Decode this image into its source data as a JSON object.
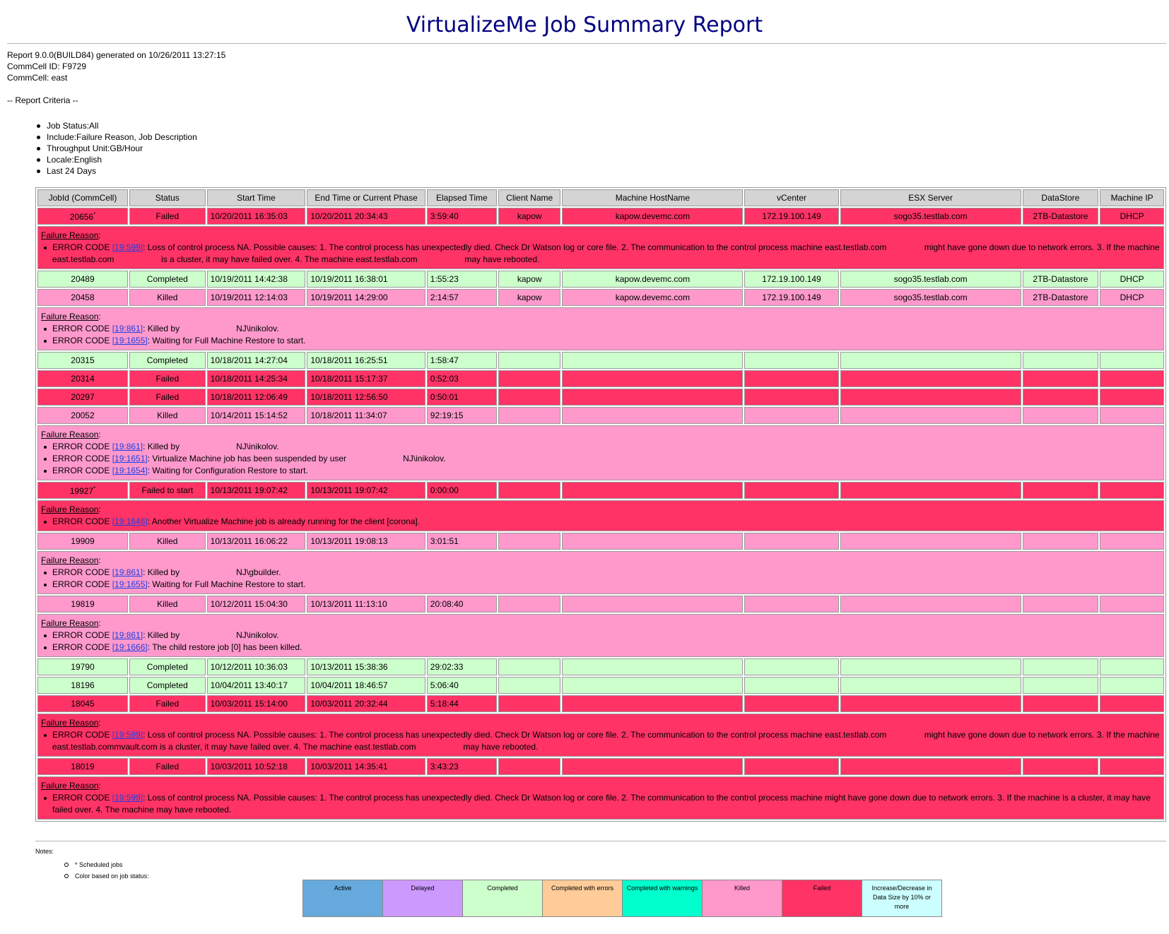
{
  "title": "VirtualizeMe Job Summary Report",
  "header": {
    "report_line": "Report 9.0.0(BUILD84) generated on 10/26/2011 13:27:15",
    "commcell_id": "CommCell ID: F9729",
    "commcell": "CommCell: east",
    "criteria_label": "-- Report Criteria --"
  },
  "criteria": [
    "Job Status:All",
    "Include:Failure Reason, Job Description",
    "Throughput Unit:GB/Hour",
    "Locale:English",
    "Last 24 Days"
  ],
  "columns": [
    "JobId (CommCell)",
    "Status",
    "Start Time",
    "End Time or Current Phase",
    "Elapsed Time",
    "Client Name",
    "Machine HostName",
    "vCenter",
    "ESX Server",
    "DataStore",
    "Machine IP"
  ],
  "colors": {
    "failed": "#ff3366",
    "completed": "#ccffcc",
    "killed": "#ff99cc",
    "header": "#d4d4d4",
    "active": "#66aadd",
    "delayed": "#cc99ff",
    "completed_with_errors": "#ffcc99",
    "completed_with_warnings": "#00ffcc",
    "increase_decrease": "#ccffff"
  },
  "failure_reason_label": "Failure Reason",
  "error_code_label": "ERROR CODE",
  "jobs": [
    {
      "jobid": "20656",
      "scheduled": true,
      "status": "Failed",
      "status_key": "failed",
      "start": "10/20/2011 16:35:03",
      "end": "10/20/2011 20:34:43",
      "elapsed": "3:59:40",
      "client": "kapow",
      "host": "kapow.devemc.com",
      "vcenter": "172.19.100.149",
      "esx": "sogo35.testlab.com",
      "datastore": "2TB-Datastore",
      "ip": "DHCP",
      "errors": [
        {
          "code": "19:599",
          "text": ": Loss of control process NA. Possible causes: 1. The control process has unexpectedly died. Check Dr Watson log or core file. 2. The communication to the control process machine east.testlab.com                might have gone down due to network errors. 3. If the machine east.testlab.com                    is a cluster, it may have failed over. 4. The machine east.testlab.com                    may have rebooted."
        }
      ]
    },
    {
      "jobid": "20489",
      "scheduled": false,
      "status": "Completed",
      "status_key": "completed",
      "start": "10/19/2011 14:42:38",
      "end": "10/19/2011 16:38:01",
      "elapsed": "1:55:23",
      "client": "kapow",
      "host": "kapow.devemc.com",
      "vcenter": "172.19.100.149",
      "esx": "sogo35.testlab.com",
      "datastore": "2TB-Datastore",
      "ip": "DHCP",
      "errors": []
    },
    {
      "jobid": "20458",
      "scheduled": false,
      "status": "Killed",
      "status_key": "killed",
      "start": "10/19/2011 12:14:03",
      "end": "10/19/2011 14:29:00",
      "elapsed": "2:14:57",
      "client": "kapow",
      "host": "kapow.devemc.com",
      "vcenter": "172.19.100.149",
      "esx": "sogo35.testlab.com",
      "datastore": "2TB-Datastore",
      "ip": "DHCP",
      "errors": [
        {
          "code": "19:861",
          "text": ": Killed by                        NJ\\inikolov."
        },
        {
          "code": "19:1655",
          "text": ": Waiting for Full Machine Restore to start."
        }
      ]
    },
    {
      "jobid": "20315",
      "scheduled": false,
      "status": "Completed",
      "status_key": "completed",
      "start": "10/18/2011 14:27:04",
      "end": "10/18/2011 16:25:51",
      "elapsed": "1:58:47",
      "client": "",
      "host": "",
      "vcenter": "",
      "esx": "",
      "datastore": "",
      "ip": "",
      "errors": []
    },
    {
      "jobid": "20314",
      "scheduled": false,
      "status": "Failed",
      "status_key": "failed",
      "start": "10/18/2011 14:25:34",
      "end": "10/18/2011 15:17:37",
      "elapsed": "0:52:03",
      "client": "",
      "host": "",
      "vcenter": "",
      "esx": "",
      "datastore": "",
      "ip": "",
      "errors": []
    },
    {
      "jobid": "20297",
      "scheduled": false,
      "status": "Failed",
      "status_key": "failed",
      "start": "10/18/2011 12:06:49",
      "end": "10/18/2011 12:56:50",
      "elapsed": "0:50:01",
      "client": "",
      "host": "",
      "vcenter": "",
      "esx": "",
      "datastore": "",
      "ip": "",
      "errors": []
    },
    {
      "jobid": "20052",
      "scheduled": false,
      "status": "Killed",
      "status_key": "killed",
      "start": "10/14/2011 15:14:52",
      "end": "10/18/2011 11:34:07",
      "elapsed": "92:19:15",
      "client": "",
      "host": "",
      "vcenter": "",
      "esx": "",
      "datastore": "",
      "ip": "",
      "errors": [
        {
          "code": "19:861",
          "text": ": Killed by                        NJ\\inikolov."
        },
        {
          "code": "19:1651",
          "text": ": Virtualize Machine job has been suspended by user                        NJ\\inikolov."
        },
        {
          "code": "19:1654",
          "text": ": Waiting for Configuration Restore to start."
        }
      ]
    },
    {
      "jobid": "19927",
      "scheduled": true,
      "status": "Failed to start",
      "status_key": "failed",
      "start": "10/13/2011 19:07:42",
      "end": "10/13/2011 19:07:42",
      "elapsed": "0:00:00",
      "client": "",
      "host": "",
      "vcenter": "",
      "esx": "",
      "datastore": "",
      "ip": "",
      "errors": [
        {
          "code": "19:1646",
          "text": ": Another Virtualize Machine job is already running for the client [corona]."
        }
      ]
    },
    {
      "jobid": "19909",
      "scheduled": false,
      "status": "Killed",
      "status_key": "killed",
      "start": "10/13/2011 16:06:22",
      "end": "10/13/2011 19:08:13",
      "elapsed": "3:01:51",
      "client": "",
      "host": "",
      "vcenter": "",
      "esx": "",
      "datastore": "",
      "ip": "",
      "errors": [
        {
          "code": "19:861",
          "text": ": Killed by                        NJ\\gbuilder."
        },
        {
          "code": "19:1655",
          "text": ": Waiting for Full Machine Restore to start."
        }
      ]
    },
    {
      "jobid": "19819",
      "scheduled": false,
      "status": "Killed",
      "status_key": "killed",
      "start": "10/12/2011 15:04:30",
      "end": "10/13/2011 11:13:10",
      "elapsed": "20:08:40",
      "client": "",
      "host": "",
      "vcenter": "",
      "esx": "",
      "datastore": "",
      "ip": "",
      "errors": [
        {
          "code": "19:861",
          "text": ": Killed by                        NJ\\inikolov."
        },
        {
          "code": "19:1666",
          "text": ": The child restore job [0] has been killed."
        }
      ]
    },
    {
      "jobid": "19790",
      "scheduled": false,
      "status": "Completed",
      "status_key": "completed",
      "start": "10/12/2011 10:36:03",
      "end": "10/13/2011 15:38:36",
      "elapsed": "29:02:33",
      "client": "",
      "host": "",
      "vcenter": "",
      "esx": "",
      "datastore": "",
      "ip": "",
      "errors": []
    },
    {
      "jobid": "18196",
      "scheduled": false,
      "status": "Completed",
      "status_key": "completed",
      "start": "10/04/2011 13:40:17",
      "end": "10/04/2011 18:46:57",
      "elapsed": "5:06:40",
      "client": "",
      "host": "",
      "vcenter": "",
      "esx": "",
      "datastore": "",
      "ip": "",
      "errors": []
    },
    {
      "jobid": "18045",
      "scheduled": false,
      "status": "Failed",
      "status_key": "failed",
      "start": "10/03/2011 15:14:00",
      "end": "10/03/2011 20:32:44",
      "elapsed": "5:18:44",
      "client": "",
      "host": "",
      "vcenter": "",
      "esx": "",
      "datastore": "",
      "ip": "",
      "errors": [
        {
          "code": "19:599",
          "text": ": Loss of control process NA. Possible causes: 1. The control process has unexpectedly died. Check Dr Watson log or core file. 2. The communication to the control process machine east.testlab.com                might have gone down due to network errors. 3. If the machine east.testlab.commvault.com is a cluster, it may have failed over. 4. The machine east.testlab.com                    may have rebooted."
        }
      ]
    },
    {
      "jobid": "18019",
      "scheduled": false,
      "status": "Failed",
      "status_key": "failed",
      "start": "10/03/2011 10:52:18",
      "end": "10/03/2011 14:35:41",
      "elapsed": "3:43:23",
      "client": "",
      "host": "",
      "vcenter": "",
      "esx": "",
      "datastore": "",
      "ip": "",
      "errors": [
        {
          "code": "19:599",
          "text": ": Loss of control process NA. Possible causes: 1. The control process has unexpectedly died. Check Dr Watson log or core file. 2. The communication to the control process machine might have gone down due to network errors. 3. If the machine is a cluster, it may have failed over. 4. The machine may have rebooted."
        }
      ]
    }
  ],
  "notes": {
    "label": "Notes:",
    "items": [
      "* Scheduled jobs",
      "Color based on job status:"
    ]
  },
  "legend": [
    {
      "label": "Active",
      "color_key": "active"
    },
    {
      "label": "Delayed",
      "color_key": "delayed"
    },
    {
      "label": "Completed",
      "color_key": "completed"
    },
    {
      "label": "Completed with errors",
      "color_key": "completed_with_errors"
    },
    {
      "label": "Completed with warnings",
      "color_key": "completed_with_warnings"
    },
    {
      "label": "Killed",
      "color_key": "killed"
    },
    {
      "label": "Failed",
      "color_key": "failed"
    },
    {
      "label": "Increase/Decrease in Data Size by 10% or more",
      "color_key": "increase_decrease"
    }
  ]
}
